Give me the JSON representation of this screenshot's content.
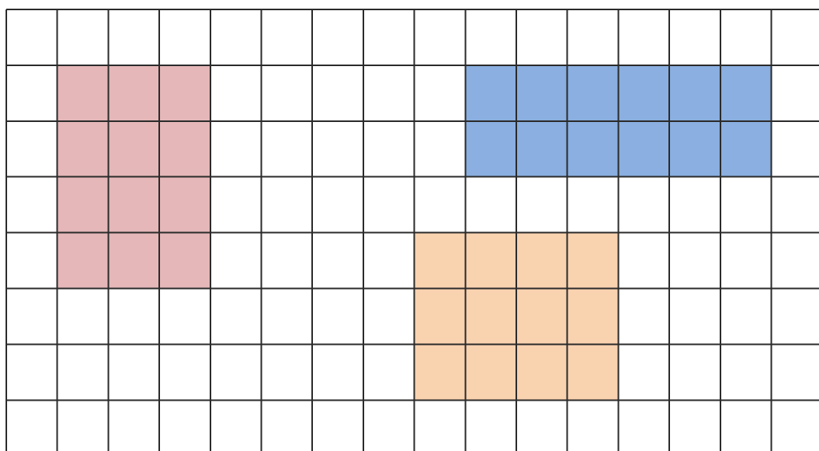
{
  "grid": {
    "columns": 16,
    "rows": 8,
    "line_color": "#2b2b2b",
    "background_color": "#ffffff"
  },
  "regions": [
    {
      "id": "red-rectangle",
      "color": "#e5b7b8",
      "col_start": 1,
      "row_start": 1,
      "col_span": 3,
      "row_span": 4
    },
    {
      "id": "blue-rectangle",
      "color": "#8aafe0",
      "col_start": 9,
      "row_start": 1,
      "col_span": 6,
      "row_span": 2
    },
    {
      "id": "orange-rectangle",
      "color": "#f9d2b0",
      "col_start": 8,
      "row_start": 4,
      "col_span": 4,
      "row_span": 3
    }
  ]
}
